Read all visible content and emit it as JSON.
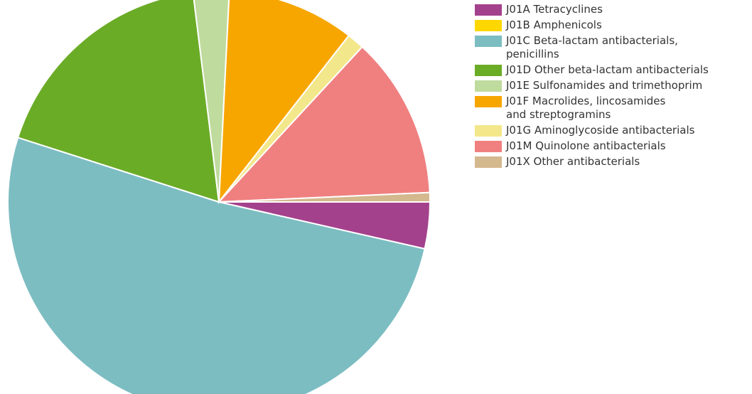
{
  "chart_data": {
    "type": "pie",
    "title": "",
    "start_angle_deg": 0,
    "direction": "clockwise",
    "series": [
      {
        "slices": [
          {
            "label": "J01A Tetracyclines",
            "value": 3.5,
            "color": "#a4418c"
          },
          {
            "label": "J01B Amphenicols",
            "value": 0.0,
            "color": "#ffd700"
          },
          {
            "label": "J01C Beta-lactam antibacterials,\npenicillins",
            "value": 50.5,
            "color": "#7cbdc2"
          },
          {
            "label": "J01D Other beta-lactam antibacterials",
            "value": 17.8,
            "color": "#6bac27"
          },
          {
            "label": "J01E Sulfonamides and trimethoprim",
            "value": 2.7,
            "color": "#bfdb9e"
          },
          {
            "label": "J01F Macrolides, lincosamides\nand streptogramins",
            "value": 9.6,
            "color": "#f7a600"
          },
          {
            "label": "J01G Aminoglycoside antibacterials",
            "value": 1.3,
            "color": "#f3e78b"
          },
          {
            "label": "J01M Quinolone antibacterials",
            "value": 12.2,
            "color": "#f08080"
          },
          {
            "label": "J01X Other antibacterials",
            "value": 0.7,
            "color": "#d4b88e"
          }
        ]
      }
    ],
    "legend_position": "right"
  }
}
